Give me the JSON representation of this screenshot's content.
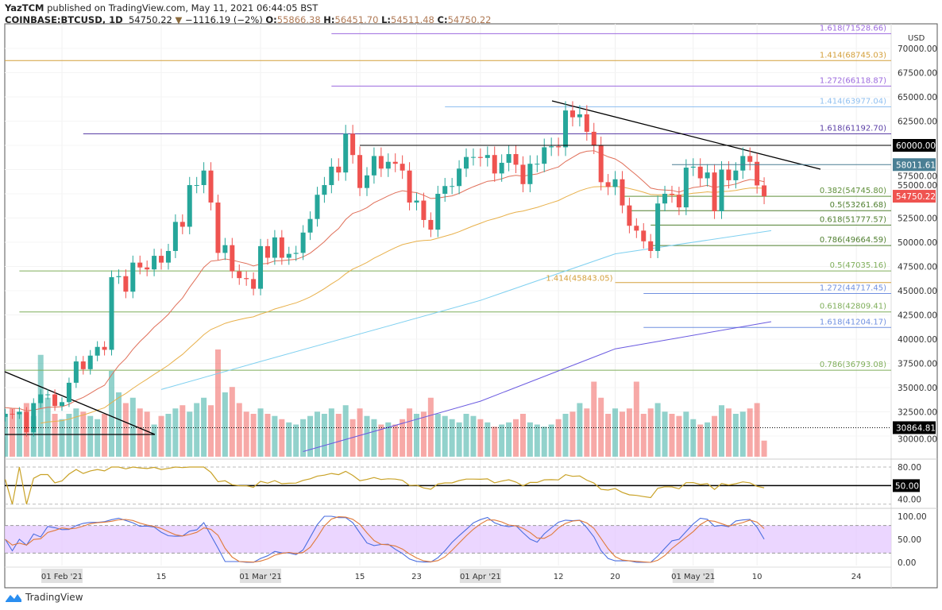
{
  "header": {
    "publisher": "YazTCM",
    "published_text": "published on TradingView.com, May 11, 2021 06:44:05 BST",
    "symbol": "COINBASE:BTCUSD, 1D",
    "last": "54750.22",
    "change": "−1116.19 (−2%)",
    "o_label": "O:",
    "o": "55866.38",
    "h_label": "H:",
    "h": "56451.70",
    "l_label": "L:",
    "l": "54511.48",
    "c_label": "C:",
    "c": "54750.22"
  },
  "footer": {
    "brand": "TradingView"
  },
  "chart_data": {
    "type": "candlestick",
    "currency": "USD",
    "start_date": "2021-01-24",
    "ylim": [
      28000,
      72000
    ],
    "y_ticks": [
      "70000.00",
      "67500.00",
      "65000.00",
      "62500.00",
      "60000.00",
      "57500.00",
      "55000.00",
      "52500.00",
      "50000.00",
      "47500.00",
      "45000.00",
      "42500.00",
      "40000.00",
      "37500.00",
      "35000.00",
      "32500.00",
      "30000.00"
    ],
    "x_ticks": [
      {
        "day": 8,
        "label": "01 Feb '21",
        "major": true
      },
      {
        "day": 22,
        "label": "15"
      },
      {
        "day": 36,
        "label": "01 Mar '21",
        "major": true
      },
      {
        "day": 50,
        "label": "15"
      },
      {
        "day": 58,
        "label": "23"
      },
      {
        "day": 67,
        "label": "01 Apr '21",
        "major": true
      },
      {
        "day": 78,
        "label": "12"
      },
      {
        "day": 86,
        "label": "20"
      },
      {
        "day": 97,
        "label": "01 May '21",
        "major": true
      },
      {
        "day": 106,
        "label": "10"
      },
      {
        "day": 120,
        "label": "24"
      }
    ],
    "closes": [
      32300,
      32250,
      32500,
      30400,
      33400,
      34300,
      34300,
      33100,
      33500,
      35500,
      37700,
      36900,
      38300,
      39200,
      38900,
      46400,
      46500,
      44900,
      47900,
      47400,
      47200,
      48600,
      47900,
      49100,
      52100,
      51600,
      55900,
      55900,
      57400,
      54100,
      48900,
      49700,
      47000,
      46300,
      46200,
      45200,
      49600,
      48400,
      50500,
      48400,
      48800,
      48900,
      51000,
      52400,
      54900,
      55900,
      57800,
      57200,
      61200,
      59000,
      55600,
      56900,
      58900,
      57600,
      58300,
      58100,
      57400,
      54100,
      54300,
      52300,
      51300,
      55000,
      55800,
      55800,
      57600,
      58800,
      58800,
      58700,
      59000,
      57100,
      58200,
      59100,
      58000,
      56000,
      58100,
      58100,
      59800,
      59900,
      59800,
      63600,
      62900,
      63200,
      61400,
      60000,
      56200,
      55700,
      56500,
      53800,
      51700,
      51200,
      50100,
      49100,
      54000,
      55000,
      54900,
      53600,
      57700,
      57800,
      56600,
      57200,
      53200,
      57500,
      56400,
      57400,
      58900,
      58300,
      55866,
      54750
    ],
    "volumes": [
      40,
      45,
      42,
      50,
      38,
      95,
      55,
      40,
      35,
      40,
      45,
      42,
      38,
      35,
      40,
      80,
      60,
      50,
      55,
      45,
      42,
      30,
      38,
      40,
      45,
      48,
      42,
      50,
      55,
      48,
      100,
      60,
      65,
      50,
      42,
      40,
      45,
      40,
      38,
      35,
      32,
      30,
      35,
      38,
      42,
      40,
      45,
      40,
      48,
      35,
      45,
      38,
      35,
      30,
      32,
      30,
      35,
      45,
      40,
      42,
      55,
      40,
      38,
      35,
      32,
      40,
      38,
      35,
      32,
      28,
      30,
      32,
      35,
      40,
      32,
      30,
      28,
      30,
      35,
      40,
      42,
      50,
      45,
      70,
      55,
      40,
      45,
      42,
      45,
      70,
      40,
      45,
      50,
      42,
      40,
      38,
      42,
      35,
      30,
      32,
      38,
      48,
      45,
      40,
      42,
      45,
      50,
      15
    ],
    "ma100": [
      [
        22,
        34800
      ],
      [
        36,
        37700
      ],
      [
        67,
        44000
      ],
      [
        86,
        48800
      ],
      [
        108,
        51200
      ]
    ],
    "ma200": [
      [
        42,
        28400
      ],
      [
        67,
        33600
      ],
      [
        86,
        39000
      ],
      [
        108,
        41800
      ]
    ],
    "levels": [
      {
        "price": 71528.66,
        "label": "1.618(71528.66)",
        "color": "#9c6ade",
        "from": 46
      },
      {
        "price": 68745.03,
        "label": "1.414(68745.03)",
        "color": "#d4a03c",
        "from": -1
      },
      {
        "price": 66118.87,
        "label": "1.272(66118.87)",
        "color": "#9c6ade",
        "from": 46
      },
      {
        "price": 63977.04,
        "label": "1.414(63977.04)",
        "color": "#90c0f0",
        "from": 62
      },
      {
        "price": 61192.7,
        "label": "1.618(61192.70)",
        "color": "#5b3fa6",
        "from": 11
      },
      {
        "price": 54745.8,
        "label": "0.382(54745.80)",
        "color": "#5f8f3a",
        "from": 87
      },
      {
        "price": 53261.68,
        "label": "0.5(53261.68)",
        "color": "#4f7f2f",
        "from": 88
      },
      {
        "price": 51777.57,
        "label": "0.618(51777.57)",
        "color": "#4f7f2f",
        "from": 91
      },
      {
        "price": 49664.59,
        "label": "0.786(49664.59)",
        "color": "#4f7f2f",
        "from": 91
      },
      {
        "price": 47035.16,
        "label": "0.5(47035.16)",
        "color": "#7fae5a",
        "from": 2
      },
      {
        "price": 45843.05,
        "label": "1.414(45843.05)",
        "color": "#d4a03c",
        "from": 86,
        "label_left": true
      },
      {
        "price": 44717.45,
        "label": "1.272(44717.45)",
        "color": "#7090e0",
        "from": 90
      },
      {
        "price": 42809.41,
        "label": "0.618(42809.41)",
        "color": "#7fae5a",
        "from": 2
      },
      {
        "price": 41204.17,
        "label": "1.618(41204.17)",
        "color": "#7090e0",
        "from": 90
      },
      {
        "price": 36793.08,
        "label": "0.786(36793.08)",
        "color": "#7fae5a",
        "from": -1
      }
    ],
    "axis_tags": [
      {
        "price": 60000,
        "label": "60000.00",
        "color": "#000000",
        "line": true,
        "from": 50
      },
      {
        "price": 58011.61,
        "label": "58011.61",
        "color": "#4a7f94",
        "line": true,
        "from": 94
      },
      {
        "price": 54750.22,
        "label": "54750.22",
        "color": "#ef5350",
        "line": false
      },
      {
        "price": 30864.81,
        "label": "30864.81",
        "color": "#000000",
        "line": "dotted",
        "from": -1
      }
    ],
    "rsi": {
      "ticks": [
        "80.00",
        "50.00",
        "40.00"
      ],
      "level_label": "50.00"
    },
    "stoch_rsi": {
      "ticks": [
        "100.00",
        "50.00",
        "0.00"
      ]
    },
    "colors": {
      "up": "#26a69a",
      "down": "#ef5350",
      "ema20": "#e0705a",
      "ema50": "#e8b04a",
      "ma100": "#7fd0f0",
      "ma200": "#6a5ae0",
      "rsi": "#c9a227",
      "stochK": "#4a6ee0",
      "stochD": "#e07a3a",
      "band": "#e6ccff"
    }
  }
}
